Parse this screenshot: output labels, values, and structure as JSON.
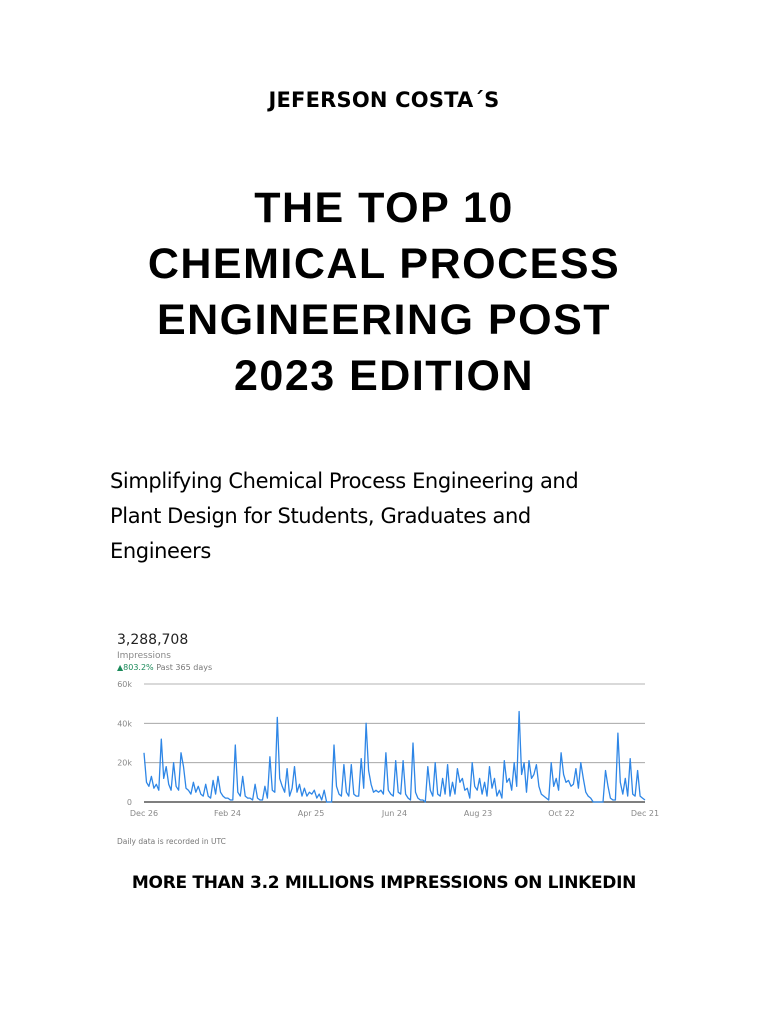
{
  "cover": {
    "author": "JEFERSON COSTA´S",
    "title_lines": [
      "THE TOP 10",
      "CHEMICAL PROCESS",
      "ENGINEERING POST",
      "2023 EDITION"
    ],
    "subtitle_lines": [
      "Simplifying Chemical Process Engineering and",
      "Plant Design for Students, Graduates and",
      "Engineers"
    ],
    "tagline": "MORE THAN 3.2 MILLIONS IMPRESSIONS ON LINKEDIN"
  },
  "stats": {
    "value": "3,288,708",
    "label": "Impressions",
    "change_arrow": "▲",
    "change_pct": "803.2%",
    "change_period": "Past 365 days",
    "footnote": "Daily data is recorded in UTC"
  },
  "colors": {
    "line": "#2e86e6",
    "positive": "#1b8a5a",
    "grid": "#9a9a9a",
    "axis": "#333333"
  },
  "chart_data": {
    "type": "line",
    "title": "Impressions",
    "xlabel": "",
    "ylabel": "",
    "ylim": [
      0,
      60000
    ],
    "yticks": [
      "0",
      "20k",
      "40k",
      "60k"
    ],
    "xticks": [
      "Dec 26",
      "Feb 24",
      "Apr 25",
      "Jun 24",
      "Aug 23",
      "Oct 22",
      "Dec 21"
    ],
    "grid": true,
    "series": [
      {
        "name": "Impressions",
        "values": [
          25000,
          10000,
          8000,
          13000,
          7000,
          9000,
          6000,
          32000,
          12000,
          18000,
          9000,
          6000,
          20000,
          8000,
          6000,
          25000,
          18000,
          7000,
          6000,
          4000,
          10000,
          5000,
          8000,
          4000,
          3000,
          9000,
          3000,
          2000,
          11000,
          4000,
          13000,
          5000,
          3000,
          2000,
          2000,
          1000,
          1000,
          29000,
          5000,
          3000,
          13000,
          3000,
          2000,
          2000,
          1000,
          9000,
          2000,
          1000,
          1000,
          8000,
          2000,
          23000,
          6000,
          5000,
          43000,
          12000,
          8000,
          5000,
          17000,
          3000,
          7000,
          18000,
          5000,
          9000,
          3000,
          7000,
          3000,
          5000,
          4000,
          6000,
          2000,
          4000,
          1000,
          6000,
          0,
          0,
          0,
          29000,
          8000,
          4000,
          3000,
          19000,
          5000,
          3000,
          19000,
          4000,
          3000,
          3000,
          22000,
          7000,
          40000,
          16000,
          9000,
          5000,
          6000,
          5000,
          6000,
          4000,
          25000,
          6000,
          4000,
          3000,
          21000,
          5000,
          4000,
          21000,
          4000,
          2000,
          1000,
          30000,
          5000,
          2000,
          1000,
          1000,
          0,
          18000,
          6000,
          3000,
          20000,
          4000,
          3000,
          12000,
          4000,
          19000,
          3000,
          10000,
          4000,
          17000,
          10000,
          12000,
          6000,
          7000,
          2000,
          20000,
          8000,
          6000,
          12000,
          4000,
          10000,
          3000,
          18000,
          7000,
          12000,
          3000,
          6000,
          2000,
          21000,
          10000,
          12000,
          6000,
          20000,
          8000,
          46000,
          14000,
          20000,
          5000,
          21000,
          12000,
          14000,
          19000,
          8000,
          4000,
          3000,
          2000,
          1000,
          20000,
          8000,
          12000,
          6000,
          25000,
          14000,
          10000,
          11000,
          8000,
          9000,
          17000,
          7000,
          20000,
          12000,
          5000,
          3000,
          2000,
          0,
          0,
          0,
          0,
          0,
          16000,
          8000,
          2000,
          1000,
          1000,
          35000,
          10000,
          4000,
          12000,
          3000,
          22000,
          4000,
          3000,
          16000,
          3000,
          2000,
          1000
        ]
      }
    ]
  }
}
